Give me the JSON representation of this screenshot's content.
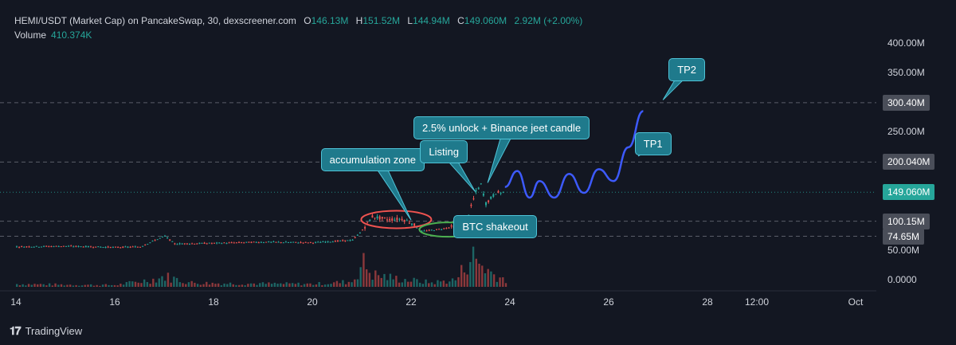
{
  "header": {
    "title": "HEMI/USDT (Market Cap) on PancakeSwap, 30, dexscreener.com",
    "o_label": "O",
    "o_value": "146.13M",
    "h_label": "H",
    "h_value": "151.52M",
    "l_label": "L",
    "l_value": "144.94M",
    "c_label": "C",
    "c_value": "149.060M",
    "change": "2.92M (+2.00%)",
    "volume_label": "Volume",
    "volume_value": "410.374K"
  },
  "brand": {
    "name": "TradingView"
  },
  "colors": {
    "background": "#131722",
    "up": "#26a69a",
    "down": "#ef5350",
    "projection": "#3d5afe",
    "callout": "#1f7a8c",
    "current_price": "#26a69a"
  },
  "chart_data": {
    "type": "candlestick",
    "x_ticks": [
      "14",
      "16",
      "18",
      "20",
      "22",
      "24",
      "26",
      "28",
      "12:00",
      "Oct"
    ],
    "y_ticks": [
      "400.00M",
      "350.00M",
      "250.00M",
      "50.00M",
      "0.0000"
    ],
    "ylim": [
      0,
      420
    ],
    "y_unit": "M",
    "price_levels": [
      {
        "label": "300.40M",
        "value": 300.4,
        "style": "dashed"
      },
      {
        "label": "200.040M",
        "value": 200.04,
        "style": "dashed"
      },
      {
        "label": "149.060M",
        "value": 149.06,
        "style": "dotted-current"
      },
      {
        "label": "100.15M",
        "value": 100.15,
        "style": "dashed"
      },
      {
        "label": "74.65M",
        "value": 74.65,
        "style": "dashed"
      }
    ],
    "price_series": {
      "name": "HEMI/USDT market cap",
      "points": [
        {
          "x": 14,
          "y": 57
        },
        {
          "x": 15,
          "y": 58
        },
        {
          "x": 16,
          "y": 56
        },
        {
          "x": 16.5,
          "y": 57
        },
        {
          "x": 16.8,
          "y": 68
        },
        {
          "x": 17.0,
          "y": 75
        },
        {
          "x": 17.2,
          "y": 62
        },
        {
          "x": 18,
          "y": 63
        },
        {
          "x": 19,
          "y": 65
        },
        {
          "x": 20,
          "y": 64
        },
        {
          "x": 20.8,
          "y": 68
        },
        {
          "x": 21.0,
          "y": 85
        },
        {
          "x": 21.2,
          "y": 108
        },
        {
          "x": 21.5,
          "y": 103
        },
        {
          "x": 21.8,
          "y": 104
        },
        {
          "x": 22.0,
          "y": 97
        },
        {
          "x": 22.2,
          "y": 83
        },
        {
          "x": 22.6,
          "y": 87
        },
        {
          "x": 22.9,
          "y": 92
        },
        {
          "x": 23.1,
          "y": 100
        },
        {
          "x": 23.3,
          "y": 150
        },
        {
          "x": 23.4,
          "y": 162
        },
        {
          "x": 23.5,
          "y": 130
        },
        {
          "x": 23.7,
          "y": 148
        },
        {
          "x": 23.9,
          "y": 149
        }
      ]
    },
    "volume_series": {
      "name": "Volume",
      "points": [
        {
          "x": 14,
          "v": 8
        },
        {
          "x": 15,
          "v": 6
        },
        {
          "x": 16,
          "v": 5
        },
        {
          "x": 16.8,
          "v": 22
        },
        {
          "x": 17.0,
          "v": 30
        },
        {
          "x": 17.5,
          "v": 12
        },
        {
          "x": 18,
          "v": 10
        },
        {
          "x": 19,
          "v": 9
        },
        {
          "x": 20,
          "v": 8
        },
        {
          "x": 20.8,
          "v": 15
        },
        {
          "x": 21.0,
          "v": 70
        },
        {
          "x": 21.2,
          "v": 35
        },
        {
          "x": 21.6,
          "v": 25
        },
        {
          "x": 22.0,
          "v": 18
        },
        {
          "x": 22.4,
          "v": 12
        },
        {
          "x": 22.9,
          "v": 20
        },
        {
          "x": 23.2,
          "v": 90
        },
        {
          "x": 23.35,
          "v": 70
        },
        {
          "x": 23.6,
          "v": 40
        },
        {
          "x": 23.9,
          "v": 20
        }
      ]
    },
    "projection": [
      {
        "x": 23.9,
        "y": 158
      },
      {
        "x": 24.15,
        "y": 185
      },
      {
        "x": 24.4,
        "y": 140
      },
      {
        "x": 24.6,
        "y": 168
      },
      {
        "x": 24.9,
        "y": 140
      },
      {
        "x": 25.2,
        "y": 180
      },
      {
        "x": 25.5,
        "y": 148
      },
      {
        "x": 25.8,
        "y": 188
      },
      {
        "x": 26.1,
        "y": 168
      },
      {
        "x": 26.4,
        "y": 225
      },
      {
        "x": 26.7,
        "y": 286
      }
    ],
    "annotations": [
      {
        "text": "accumulation zone",
        "x": 21.3,
        "y": 205
      },
      {
        "text": "Listing",
        "x": 22.7,
        "y": 218
      },
      {
        "text": "2.5% unlock + Binance jeet candle",
        "x": 24.0,
        "y": 258
      },
      {
        "text": "BTC shakeout",
        "x": 23.7,
        "y": 91
      },
      {
        "text": "TP1",
        "x": 26.9,
        "y": 232
      },
      {
        "text": "TP2",
        "x": 27.6,
        "y": 357
      }
    ]
  }
}
